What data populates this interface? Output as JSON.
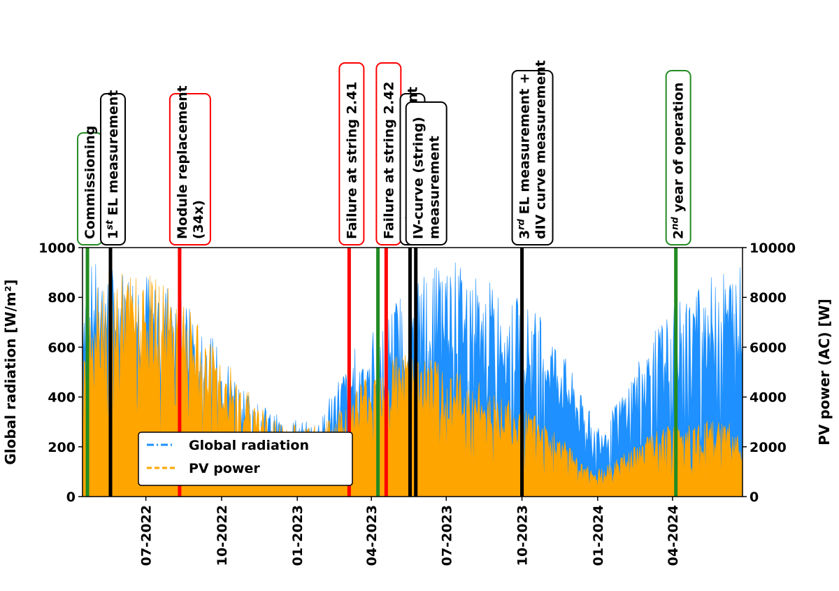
{
  "chart_data": {
    "type": "area",
    "x_axis": {
      "type": "date",
      "range": [
        "2022-04-15",
        "2024-06-25"
      ],
      "ticks": [
        {
          "date": "2022-07-01",
          "label": "07-2022"
        },
        {
          "date": "2022-10-01",
          "label": "10-2022"
        },
        {
          "date": "2023-01-01",
          "label": "01-2023"
        },
        {
          "date": "2023-04-01",
          "label": "04-2023"
        },
        {
          "date": "2023-07-01",
          "label": "07-2023"
        },
        {
          "date": "2023-10-01",
          "label": "10-2023"
        },
        {
          "date": "2024-01-01",
          "label": "01-2024"
        },
        {
          "date": "2024-04-01",
          "label": "04-2024"
        }
      ]
    },
    "y_left": {
      "label": "Global radiation [W/m²]",
      "range": [
        0,
        1000
      ],
      "ticks": [
        0,
        200,
        400,
        600,
        800,
        1000
      ]
    },
    "y_right": {
      "label": "PV power (AC) [W]",
      "range": [
        0,
        10000
      ],
      "ticks": [
        0,
        2000,
        4000,
        6000,
        8000,
        10000
      ]
    },
    "grid": false,
    "legend": {
      "position": "lower-left",
      "entries": [
        {
          "label": "Global radiation",
          "color": "#1e90ff",
          "style": "dash-dot"
        },
        {
          "label": "PV power",
          "color": "#ffa500",
          "style": "dashed"
        }
      ]
    },
    "series": [
      {
        "name": "Global radiation",
        "axis": "left",
        "unit": "W/m²",
        "color": "#1e90ff",
        "x": [
          "2022-04-15",
          "2022-05-01",
          "2022-05-15",
          "2022-06-01",
          "2022-06-15",
          "2022-07-01",
          "2022-07-15",
          "2022-08-01",
          "2022-08-15",
          "2022-09-01",
          "2022-09-15",
          "2022-10-01",
          "2022-10-15",
          "2022-11-01",
          "2022-11-15",
          "2022-12-01",
          "2022-12-15",
          "2023-01-01",
          "2023-01-15",
          "2023-02-01",
          "2023-02-15",
          "2023-03-01",
          "2023-03-15",
          "2023-04-01",
          "2023-04-15",
          "2023-05-01",
          "2023-05-15",
          "2023-06-01",
          "2023-06-15",
          "2023-07-01",
          "2023-07-15",
          "2023-08-01",
          "2023-08-15",
          "2023-09-01",
          "2023-09-15",
          "2023-10-01",
          "2023-10-15",
          "2023-11-01",
          "2023-11-15",
          "2023-12-01",
          "2023-12-15",
          "2024-01-01",
          "2024-01-15",
          "2024-02-01",
          "2024-02-15",
          "2024-03-01",
          "2024-03-15",
          "2024-04-01",
          "2024-04-15",
          "2024-05-01",
          "2024-05-15",
          "2024-06-01",
          "2024-06-15",
          "2024-06-25"
        ],
        "y": [
          930,
          940,
          920,
          930,
          935,
          920,
          920,
          860,
          800,
          730,
          660,
          590,
          520,
          450,
          390,
          340,
          320,
          320,
          300,
          330,
          470,
          530,
          620,
          680,
          720,
          800,
          860,
          920,
          960,
          960,
          950,
          920,
          880,
          850,
          820,
          790,
          760,
          690,
          620,
          500,
          380,
          300,
          330,
          430,
          530,
          610,
          690,
          760,
          800,
          860,
          880,
          910,
          930,
          950
        ]
      },
      {
        "name": "PV power",
        "axis": "right",
        "unit": "W",
        "color": "#ffa500",
        "x": [
          "2022-04-15",
          "2022-05-01",
          "2022-05-15",
          "2022-06-01",
          "2022-06-15",
          "2022-07-01",
          "2022-07-15",
          "2022-08-01",
          "2022-08-15",
          "2022-09-01",
          "2022-09-15",
          "2022-10-01",
          "2022-10-15",
          "2022-11-01",
          "2022-11-15",
          "2022-12-01",
          "2022-12-15",
          "2023-01-01",
          "2023-01-15",
          "2023-02-01",
          "2023-02-15",
          "2023-03-01",
          "2023-03-15",
          "2023-04-01",
          "2023-04-15",
          "2023-05-01",
          "2023-05-15",
          "2023-06-01",
          "2023-06-15",
          "2023-07-01",
          "2023-07-15",
          "2023-08-01",
          "2023-08-15",
          "2023-09-01",
          "2023-09-15",
          "2023-10-01",
          "2023-10-15",
          "2023-11-01",
          "2023-11-15",
          "2023-12-01",
          "2023-12-15",
          "2024-01-01",
          "2024-01-15",
          "2024-02-01",
          "2024-02-15",
          "2024-03-01",
          "2024-03-15",
          "2024-04-01",
          "2024-04-15",
          "2024-05-01",
          "2024-05-15",
          "2024-06-01",
          "2024-06-15",
          "2024-06-25"
        ],
        "y": [
          8800,
          9000,
          9100,
          9050,
          9000,
          8950,
          8800,
          8400,
          7800,
          7100,
          6500,
          5800,
          5100,
          4400,
          3700,
          3200,
          3000,
          3000,
          2800,
          2900,
          3300,
          4100,
          4600,
          5200,
          5600,
          6000,
          5900,
          5700,
          5500,
          5300,
          5000,
          4800,
          4500,
          4200,
          3900,
          3600,
          3300,
          3000,
          2500,
          2000,
          1400,
          1100,
          1300,
          1700,
          2000,
          2400,
          2700,
          2900,
          3000,
          3000,
          3050,
          3100,
          2900,
          2500
        ]
      }
    ],
    "events": [
      {
        "date": "2022-04-21",
        "label_lines": [
          "Commissioning"
        ],
        "color": "#228b22"
      },
      {
        "date": "2022-05-19",
        "label_lines": [
          "1st EL measurement"
        ],
        "color": "#000000"
      },
      {
        "date": "2022-08-11",
        "label_lines": [
          "Module replacement",
          "(34x)"
        ],
        "color": "#ff0000"
      },
      {
        "date": "2023-03-05",
        "label_lines": [
          "Failure at string 2.41"
        ],
        "color": "#ff0000"
      },
      {
        "date": "2023-04-09",
        "label_lines": [],
        "color": "#228b22"
      },
      {
        "date": "2023-04-19",
        "label_lines": [
          "Failure at string 2.42"
        ],
        "color": "#ff0000"
      },
      {
        "date": "2023-05-18",
        "label_lines": [
          "2nd EL measurement"
        ],
        "color": "#000000"
      },
      {
        "date": "2023-05-25",
        "label_lines": [
          "IV-curve (string)",
          "measurement"
        ],
        "color": "#000000"
      },
      {
        "date": "2023-10-01",
        "label_lines": [
          "3rd EL measurement +",
          "dIV curve measurement"
        ],
        "color": "#000000"
      },
      {
        "date": "2024-04-05",
        "label_lines": [
          "2nd year of operation"
        ],
        "color": "#228b22"
      }
    ]
  }
}
